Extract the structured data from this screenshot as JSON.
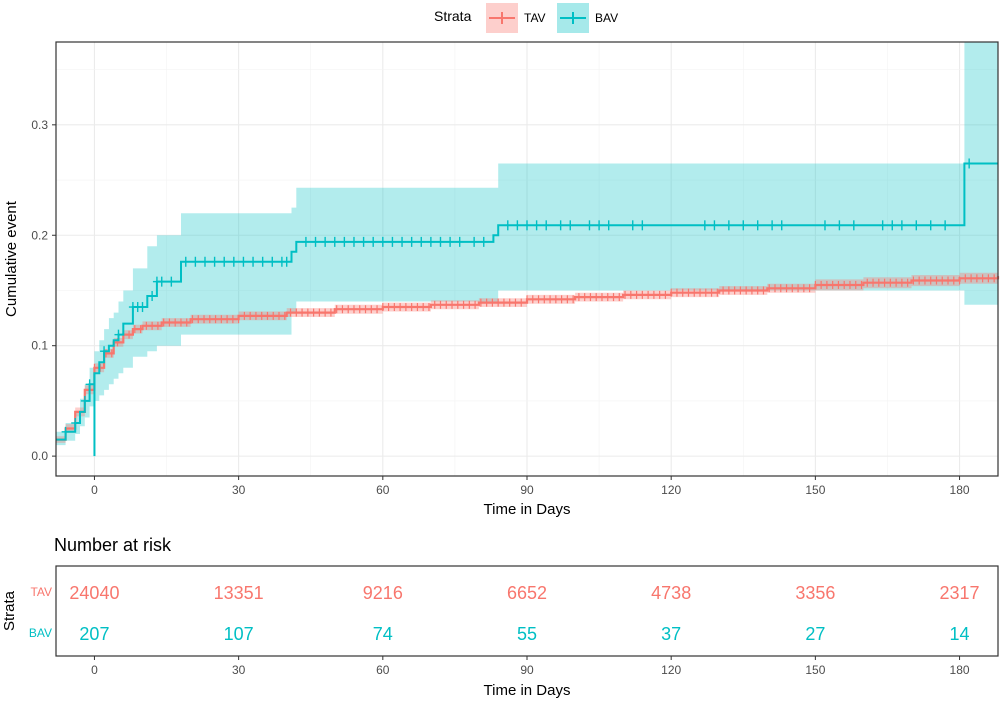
{
  "chart_data": [
    {
      "type": "line",
      "subtype": "kaplan-meier cumulative event",
      "xlabel": "Time in Days",
      "ylabel": "Cumulative event",
      "xlim": [
        -8,
        188
      ],
      "ylim": [
        -0.018,
        0.375
      ],
      "xticks": [
        0,
        30,
        60,
        90,
        120,
        150,
        180
      ],
      "yticks": [
        0.0,
        0.1,
        0.2,
        0.3
      ],
      "ytick_labels": [
        "0.0",
        "0.1",
        "0.2",
        "0.3"
      ],
      "grid": true,
      "legend": {
        "title": "Strata",
        "position": "top",
        "entries": [
          "TAV",
          "BAV"
        ]
      },
      "series": [
        {
          "name": "TAV",
          "color": "#F8766D",
          "x": [
            -8,
            -6,
            -4,
            -2,
            0,
            2,
            4,
            6,
            8,
            10,
            14,
            20,
            30,
            40,
            50,
            60,
            70,
            80,
            90,
            100,
            110,
            120,
            130,
            140,
            150,
            160,
            170,
            180,
            188
          ],
          "y": [
            0.015,
            0.025,
            0.04,
            0.06,
            0.08,
            0.093,
            0.103,
            0.11,
            0.115,
            0.118,
            0.121,
            0.124,
            0.127,
            0.13,
            0.133,
            0.135,
            0.137,
            0.139,
            0.142,
            0.144,
            0.146,
            0.148,
            0.15,
            0.152,
            0.155,
            0.157,
            0.159,
            0.161,
            0.163
          ],
          "lower": [
            0.012,
            0.021,
            0.036,
            0.056,
            0.076,
            0.089,
            0.099,
            0.106,
            0.111,
            0.114,
            0.117,
            0.12,
            0.123,
            0.126,
            0.129,
            0.131,
            0.133,
            0.135,
            0.138,
            0.14,
            0.142,
            0.144,
            0.146,
            0.148,
            0.15,
            0.152,
            0.154,
            0.156,
            0.158
          ],
          "upper": [
            0.018,
            0.029,
            0.044,
            0.064,
            0.084,
            0.097,
            0.107,
            0.114,
            0.119,
            0.122,
            0.125,
            0.128,
            0.131,
            0.134,
            0.137,
            0.139,
            0.141,
            0.143,
            0.146,
            0.148,
            0.15,
            0.152,
            0.154,
            0.156,
            0.16,
            0.162,
            0.164,
            0.166,
            0.168
          ]
        },
        {
          "name": "BAV",
          "color": "#00BFC4",
          "x": [
            -8,
            -6,
            -4,
            -3,
            -2,
            -1,
            0,
            1,
            2,
            3,
            4,
            5,
            6,
            8,
            11,
            13,
            18,
            41,
            42,
            83,
            84,
            180,
            181,
            188
          ],
          "y": [
            0.015,
            0.022,
            0.03,
            0.04,
            0.05,
            0.065,
            0.075,
            0.085,
            0.095,
            0.1,
            0.105,
            0.11,
            0.12,
            0.135,
            0.145,
            0.158,
            0.176,
            0.185,
            0.194,
            0.2,
            0.209,
            0.209,
            0.265,
            0.265
          ],
          "lower": [
            0.01,
            0.014,
            0.02,
            0.027,
            0.035,
            0.045,
            0.05,
            0.055,
            0.06,
            0.065,
            0.07,
            0.075,
            0.08,
            0.09,
            0.095,
            0.1,
            0.11,
            0.13,
            0.14,
            0.14,
            0.15,
            0.15,
            0.137,
            0.137
          ],
          "upper": [
            0.022,
            0.03,
            0.04,
            0.052,
            0.065,
            0.08,
            0.095,
            0.105,
            0.115,
            0.125,
            0.13,
            0.14,
            0.15,
            0.17,
            0.19,
            0.2,
            0.22,
            0.225,
            0.243,
            0.243,
            0.265,
            0.265,
            0.375,
            0.375
          ]
        }
      ],
      "bav_vertical_drop_at_day": 0,
      "bav_vertical_drop_to": 0.0
    },
    {
      "type": "table",
      "title": "Number at risk",
      "ylabel": "Strata",
      "xlabel": "Time in Days",
      "columns": [
        0,
        30,
        60,
        90,
        120,
        150,
        180
      ],
      "rows": [
        {
          "label": "TAV",
          "color": "#F8766D",
          "values": [
            "24040",
            "13351",
            "9216",
            "6652",
            "4738",
            "3356",
            "2317"
          ]
        },
        {
          "label": "BAV",
          "color": "#00BFC4",
          "values": [
            "207",
            "107",
            "74",
            "55",
            "37",
            "27",
            "14"
          ]
        }
      ]
    }
  ]
}
